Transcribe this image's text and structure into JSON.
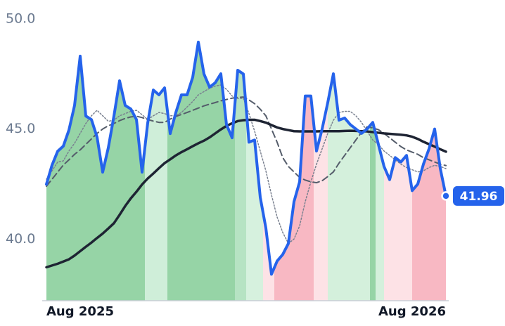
{
  "chart_data": {
    "type": "line",
    "categories": [
      "Aug 2025",
      null,
      null,
      null,
      null,
      null,
      null,
      null,
      null,
      null,
      null,
      null,
      null,
      null,
      null,
      null,
      null,
      null,
      null,
      null,
      null,
      null,
      null,
      null,
      null,
      null,
      null,
      null,
      null,
      null,
      null,
      null,
      null,
      null,
      null,
      null,
      null,
      null,
      null,
      null,
      null,
      null,
      null,
      null,
      null,
      null,
      null,
      null,
      null,
      null,
      null,
      null,
      null,
      null,
      null,
      null,
      null,
      null,
      null,
      null,
      null,
      null,
      null,
      null,
      null,
      null,
      null,
      null,
      null,
      null,
      null,
      "Aug 2026"
    ],
    "series": [
      {
        "color": "#2563eb",
        "width": 4,
        "dash": "none",
        "area": true,
        "end_marker": true,
        "values": [
          42.49,
          43.36,
          43.99,
          44.22,
          44.95,
          46.07,
          48.31,
          45.59,
          45.43,
          44.63,
          43.04,
          44.15,
          45.59,
          47.19,
          46.07,
          45.91,
          45.43,
          43.04,
          45.27,
          46.77,
          46.55,
          46.87,
          44.79,
          45.75,
          46.55,
          46.55,
          47.35,
          48.95,
          47.5,
          46.9,
          47.1,
          47.51,
          45.2,
          44.6,
          47.67,
          47.5,
          44.4,
          44.5,
          41.9,
          40.5,
          38.4,
          39.0,
          39.3,
          39.8,
          41.7,
          42.6,
          46.5,
          46.5,
          44.0,
          45.0,
          46.2,
          47.51,
          45.4,
          45.5,
          45.2,
          45.0,
          44.8,
          45.0,
          45.3,
          44.3,
          43.3,
          42.7,
          43.7,
          43.5,
          43.8,
          42.2,
          42.5,
          43.4,
          44.1,
          45.0,
          43.2,
          41.96
        ]
      },
      {
        "color": "#1e2433",
        "width": 3.5,
        "dash": "none",
        "values": [
          38.72,
          38.8,
          38.88,
          38.98,
          39.08,
          39.25,
          39.45,
          39.65,
          39.84,
          40.05,
          40.25,
          40.48,
          40.72,
          41.1,
          41.5,
          41.85,
          42.15,
          42.48,
          42.75,
          42.98,
          43.22,
          43.45,
          43.62,
          43.8,
          43.95,
          44.08,
          44.22,
          44.35,
          44.47,
          44.62,
          44.8,
          44.98,
          45.14,
          45.26,
          45.36,
          45.4,
          45.42,
          45.42,
          45.36,
          45.29,
          45.18,
          45.07,
          45.0,
          44.95,
          44.9,
          44.89,
          44.89,
          44.89,
          44.89,
          44.9,
          44.9,
          44.9,
          44.9,
          44.91,
          44.92,
          44.91,
          44.9,
          44.89,
          44.86,
          44.83,
          44.8,
          44.78,
          44.76,
          44.74,
          44.71,
          44.65,
          44.55,
          44.42,
          44.31,
          44.2,
          44.08,
          43.97
        ]
      },
      {
        "color": "#555d6b",
        "width": 2,
        "dash": "9 5",
        "values": [
          42.4,
          42.72,
          43.04,
          43.36,
          43.6,
          43.85,
          44.05,
          44.3,
          44.55,
          44.8,
          45.0,
          45.15,
          45.25,
          45.38,
          45.48,
          45.55,
          45.58,
          45.52,
          45.43,
          45.36,
          45.3,
          45.3,
          45.45,
          45.57,
          45.66,
          45.75,
          45.85,
          45.95,
          46.05,
          46.13,
          46.2,
          46.28,
          46.34,
          46.4,
          46.44,
          46.45,
          46.32,
          46.15,
          45.9,
          45.6,
          45.0,
          44.4,
          43.7,
          43.3,
          43.05,
          42.8,
          42.68,
          42.6,
          42.56,
          42.65,
          42.84,
          43.05,
          43.45,
          43.8,
          44.15,
          44.5,
          44.85,
          45.1,
          45.05,
          44.97,
          44.8,
          44.6,
          44.4,
          44.2,
          44.05,
          43.95,
          43.85,
          43.7,
          43.6,
          43.5,
          43.4,
          43.34
        ]
      },
      {
        "color": "#7a8190",
        "width": 1.5,
        "dash": "2 2.5",
        "values": [
          42.72,
          43.1,
          43.5,
          43.55,
          44.0,
          44.35,
          44.8,
          45.25,
          45.6,
          45.85,
          45.6,
          45.35,
          45.4,
          45.6,
          45.7,
          45.8,
          45.85,
          45.65,
          45.43,
          45.6,
          45.75,
          45.7,
          45.6,
          45.6,
          45.75,
          46.0,
          46.25,
          46.55,
          46.7,
          46.85,
          46.95,
          47.0,
          46.8,
          46.5,
          46.39,
          46.39,
          45.7,
          44.9,
          44.0,
          43.1,
          42.0,
          41.0,
          40.3,
          39.8,
          40.0,
          40.6,
          41.7,
          42.6,
          43.4,
          44.1,
          44.8,
          45.4,
          45.75,
          45.8,
          45.8,
          45.6,
          45.3,
          44.9,
          44.5,
          44.3,
          44.0,
          43.8,
          43.6,
          43.4,
          43.25,
          43.15,
          43.05,
          43.1,
          43.25,
          43.35,
          43.3,
          43.2
        ]
      }
    ],
    "bands": [
      {
        "from": 0,
        "to": 17.5,
        "color": "#96d4a6"
      },
      {
        "from": 17.5,
        "to": 21.5,
        "color": "#cfeed9"
      },
      {
        "from": 21.5,
        "to": 33.5,
        "color": "#96d4a6"
      },
      {
        "from": 33.5,
        "to": 35.5,
        "color": "#b6e3c3"
      },
      {
        "from": 35.5,
        "to": 38.5,
        "color": "#d6f1de"
      },
      {
        "from": 38.5,
        "to": 40.5,
        "color": "#fde2e6"
      },
      {
        "from": 40.5,
        "to": 47.5,
        "color": "#f8b8c3"
      },
      {
        "from": 47.5,
        "to": 50,
        "color": "#fde2e6"
      },
      {
        "from": 50,
        "to": 57.5,
        "color": "#d4f0dc"
      },
      {
        "from": 57.5,
        "to": 58.5,
        "color": "#96d4a6"
      },
      {
        "from": 58.5,
        "to": 60,
        "color": "#d4f0dc"
      },
      {
        "from": 60,
        "to": 65,
        "color": "#fde2e6"
      },
      {
        "from": 65,
        "to": 71,
        "color": "#f8b8c3"
      }
    ],
    "ylim": [
      37.2,
      50.86
    ],
    "yticks": [
      {
        "value": 40,
        "label": "40.0"
      },
      {
        "value": 45,
        "label": "45.0"
      },
      {
        "value": 50,
        "label": "50.0"
      }
    ],
    "grid": false
  }
}
